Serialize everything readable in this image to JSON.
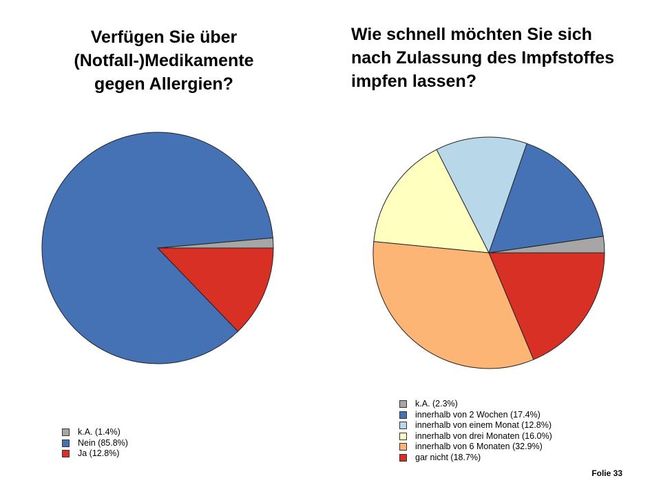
{
  "slide": {
    "number_label": "Folie 33"
  },
  "chart_data": [
    {
      "type": "pie",
      "title": "Verfügen Sie über (Notfall-)Medikamente gegen Allergien?",
      "title_lines": [
        "Verfügen Sie über",
        "(Notfall-)Medikamente",
        "gegen Allergien?"
      ],
      "slices": [
        {
          "label": "k.A. (1.4%)",
          "value": 1.4,
          "color": "#a6a6a6"
        },
        {
          "label": "Nein (85.8%)",
          "value": 85.8,
          "color": "#4472b4"
        },
        {
          "label": "Ja (12.8%)",
          "value": 12.8,
          "color": "#d93025"
        }
      ],
      "legend_position": "bottom-left"
    },
    {
      "type": "pie",
      "title": "Wie schnell möchten Sie sich nach Zulassung des Impfstoffes impfen lassen?",
      "title_lines": [
        "Wie schnell möchten Sie sich",
        "nach Zulassung des Impfstoffes",
        "impfen lassen?"
      ],
      "slices": [
        {
          "label": "k.A. (2.3%)",
          "value": 2.3,
          "color": "#a6a6a6"
        },
        {
          "label": "innerhalb von 2 Wochen (17.4%)",
          "value": 17.4,
          "color": "#4472b4"
        },
        {
          "label": "innerhalb von einem Monat (12.8%)",
          "value": 12.8,
          "color": "#b8d8ea"
        },
        {
          "label": "innerhalb von drei Monaten (16.0%)",
          "value": 16.0,
          "color": "#ffffc0"
        },
        {
          "label": "innerhalb von 6 Monaten (32.9%)",
          "value": 32.9,
          "color": "#fdb576"
        },
        {
          "label": "gar nicht (18.7%)",
          "value": 18.7,
          "color": "#d93025"
        }
      ],
      "legend_position": "bottom-left"
    }
  ]
}
